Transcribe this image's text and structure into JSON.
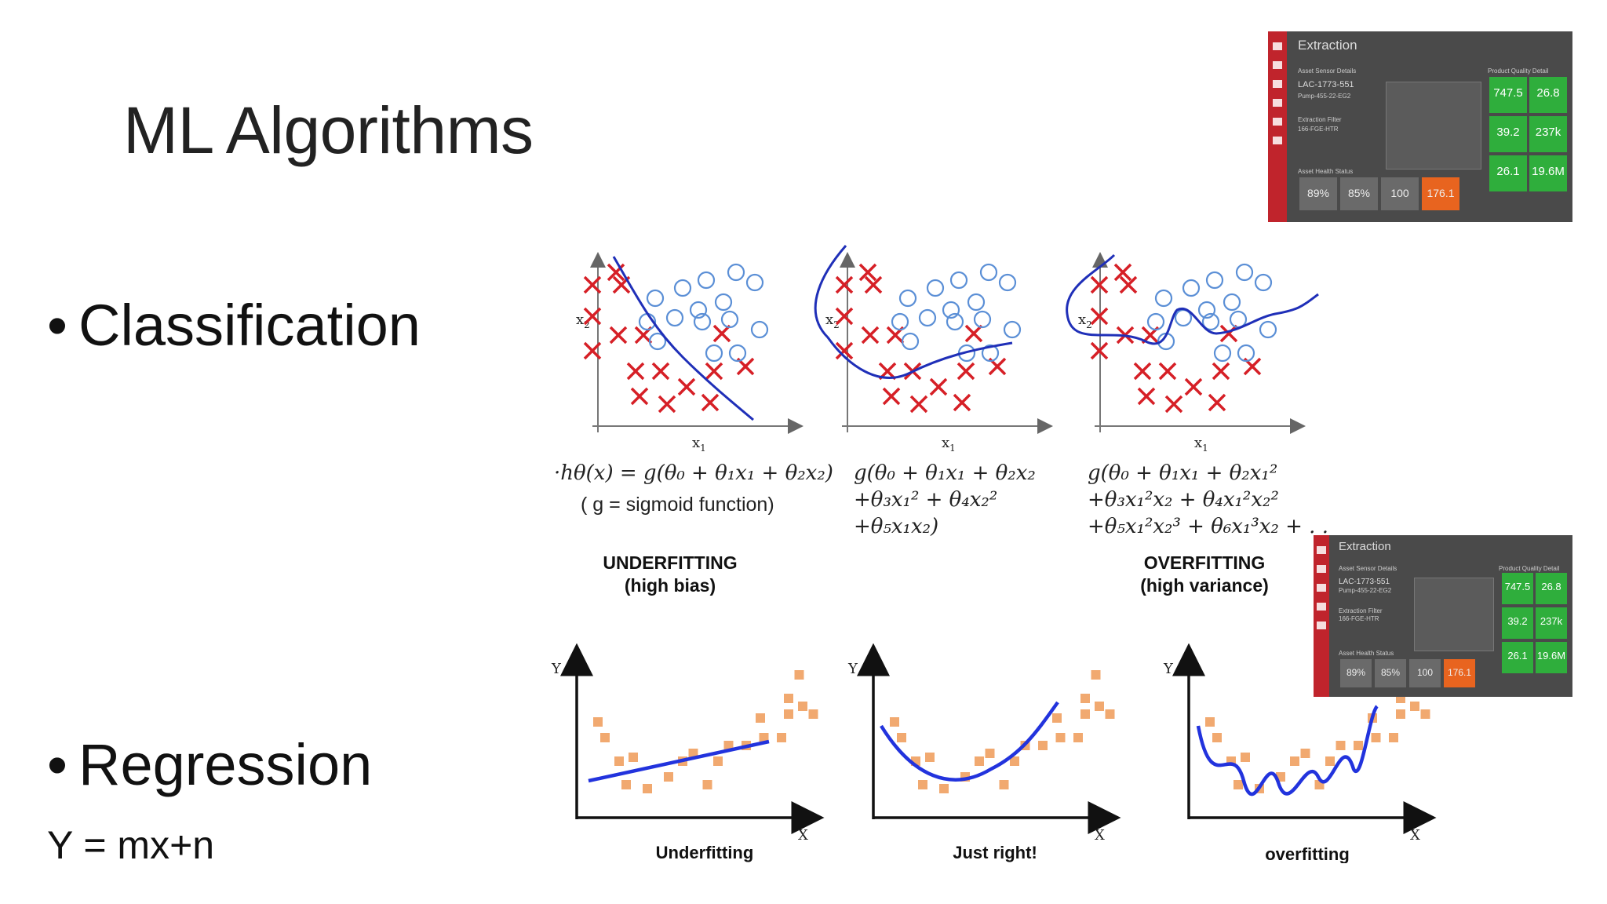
{
  "slide": {
    "title": "ML Algorithms",
    "bullets": [
      {
        "marker": "•",
        "label": "Classification"
      },
      {
        "marker": "•",
        "label": "Regression"
      }
    ],
    "regression_equation": "Y = mx+n"
  },
  "classification_figure": {
    "axis_x": "x",
    "axis_x_sub": "1",
    "axis_y": "x",
    "axis_y_sub": "2",
    "panels": [
      {
        "formula_lines": [
          "·hθ(x) = g(θ₀ + θ₁x₁ + θ₂x₂)"
        ],
        "note": "( g = sigmoid function)",
        "caption": [
          "UNDERFITTING",
          "(high bias)"
        ]
      },
      {
        "formula_lines": [
          "g(θ₀ + θ₁x₁ + θ₂x₂",
          "+θ₃x₁² + θ₄x₂²",
          "+θ₅x₁x₂)"
        ],
        "note": "",
        "caption": [
          "",
          ""
        ]
      },
      {
        "formula_lines": [
          "g(θ₀ + θ₁x₁ + θ₂x₁²",
          "+θ₃x₁²x₂ + θ₄x₁²x₂²",
          "+θ₅x₁²x₂³ + θ₆x₁³x₂ + . . ."
        ],
        "note": "",
        "caption": [
          "OVERFITTING",
          "(high variance)"
        ]
      }
    ],
    "marker_colors": {
      "cross": "#d61f26",
      "circle": "#5b8fd6",
      "boundary": "#1f2fb8"
    }
  },
  "regression_figure": {
    "axis_x": "X",
    "axis_y": "Y",
    "panels": [
      {
        "caption": "Underfitting"
      },
      {
        "caption": "Just right!"
      },
      {
        "caption": "overfitting"
      }
    ],
    "marker_colors": {
      "point": "#f0a060",
      "fit": "#2233dd"
    }
  },
  "dashboard_thumbnail": {
    "title": "Extraction",
    "section_left": "Asset Sensor Details",
    "section_right": "Product Quality Detail",
    "device_id": "LAC-1773-551",
    "device_sub": "Pump-455-22-EG2",
    "filter": "Extraction Filter",
    "filter_sub": "166-FGE-HTR",
    "health_label": "Asset Health Status",
    "tiles": [
      "747.5",
      "26.8",
      "39.2",
      "237k",
      "26.1",
      "19.6M"
    ],
    "stats": [
      "89%",
      "85%",
      "100",
      "176.1"
    ],
    "colors": {
      "sidebar": "#c0242c",
      "tile": "#2fae3c",
      "alert": "#e8641f"
    }
  }
}
